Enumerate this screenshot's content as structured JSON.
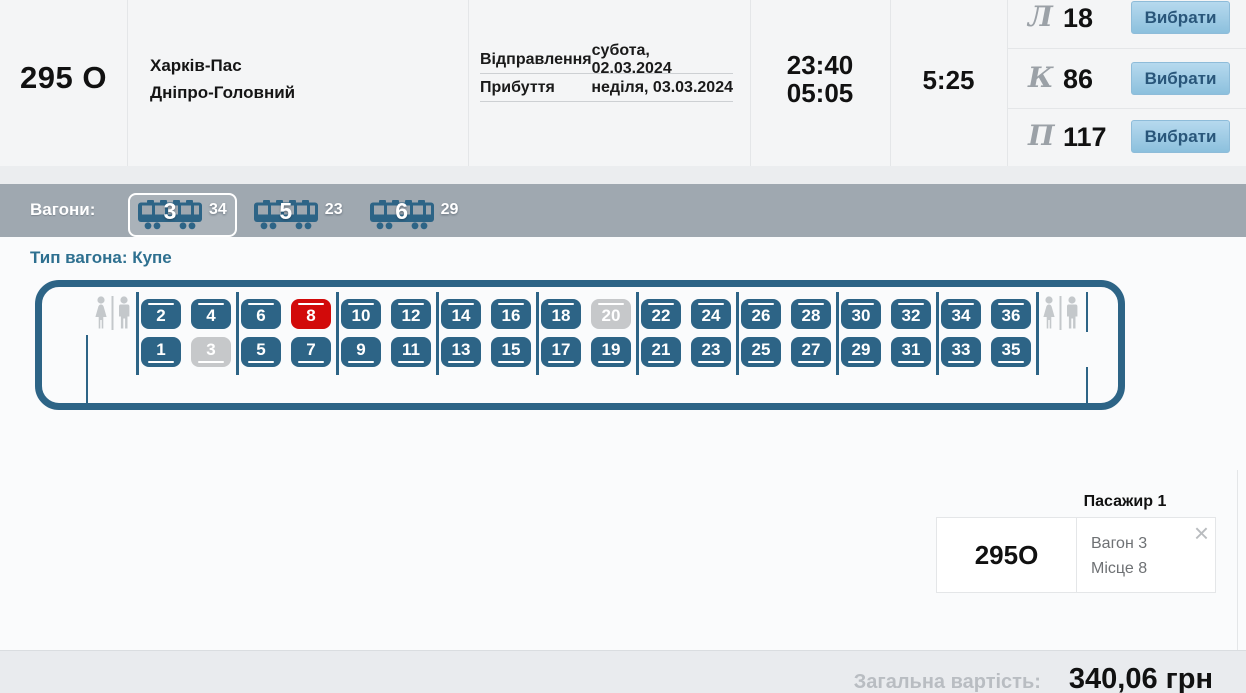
{
  "train": {
    "number": "295 О",
    "station_from": "Харків-Пас",
    "station_to": "Дніпро-Головний",
    "departure_label": "Відправлення",
    "departure_value": "субота, 02.03.2024",
    "arrival_label": "Прибуття",
    "arrival_value": "неділя, 03.03.2024",
    "time_departure": "23:40",
    "time_arrival": "05:05",
    "duration": "5:25",
    "classes": [
      {
        "code": "Л",
        "free_seats": "18",
        "button_label": "Вибрати"
      },
      {
        "code": "К",
        "free_seats": "86",
        "button_label": "Вибрати"
      },
      {
        "code": "П",
        "free_seats": "117",
        "button_label": "Вибрати"
      }
    ]
  },
  "wagons": {
    "label": "Вагони:",
    "items": [
      {
        "number": "3",
        "free_seats": "34",
        "selected": true
      },
      {
        "number": "5",
        "free_seats": "23",
        "selected": false
      },
      {
        "number": "6",
        "free_seats": "29",
        "selected": false
      }
    ]
  },
  "seatmap": {
    "type_label": "Тип вагона: Купе",
    "rows": {
      "upper": [
        2,
        4,
        6,
        8,
        10,
        12,
        14,
        16,
        18,
        20,
        22,
        24,
        26,
        28,
        30,
        32,
        34,
        36
      ],
      "lower": [
        1,
        3,
        5,
        7,
        9,
        11,
        13,
        15,
        17,
        19,
        21,
        23,
        25,
        27,
        29,
        31,
        33,
        35
      ]
    },
    "selected": [
      8
    ],
    "unavailable": [
      3,
      20
    ]
  },
  "passenger": {
    "title": "Пасажир 1",
    "train": "295О",
    "wagon": "Вагон 3",
    "seat": "Місце 8",
    "close_glyph": "×"
  },
  "footer": {
    "total_label": "Загальна вартість:",
    "total_value": "340,06 грн"
  },
  "colors": {
    "seat_free": "#2d6486",
    "seat_selected": "#d20a0a",
    "seat_unavailable": "#c6c8ca",
    "wagons_bar": "#9fa8b0",
    "button_gradient_top": "#b6d9ee",
    "button_gradient_bottom": "#8cc0dd",
    "button_text": "#29567a",
    "type_label_text": "#2e7090"
  }
}
